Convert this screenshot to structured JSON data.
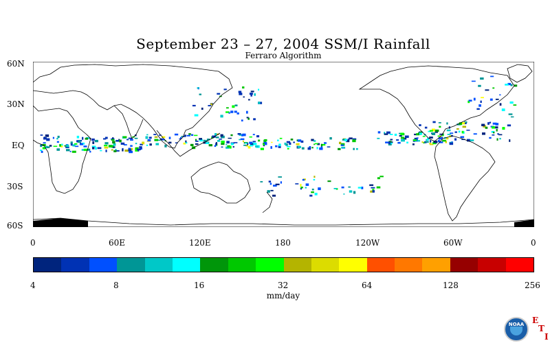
{
  "title": "September 23 – 27, 2004 SSM/I Rainfall",
  "subtitle": "Ferraro Algorithm",
  "lat_labels": [
    "60N",
    "30N",
    "EQ",
    "30S",
    "60S"
  ],
  "lon_labels": [
    "0",
    "60E",
    "120E",
    "180",
    "120W",
    "60W",
    "0"
  ],
  "colorbar": {
    "colors": [
      "#00247d",
      "#0032b4",
      "#0050ff",
      "#009696",
      "#00c8c8",
      "#00ffff",
      "#00960a",
      "#00c800",
      "#00ff00",
      "#b4b400",
      "#dcdc00",
      "#ffff00",
      "#ff5000",
      "#ff7800",
      "#ffa000",
      "#960000",
      "#c80000",
      "#ff0000"
    ],
    "tick_labels": [
      "4",
      "8",
      "16",
      "32",
      "64",
      "128",
      "256"
    ],
    "units": "mm/day"
  },
  "logo": {
    "label": "NOAA",
    "letters": [
      "E",
      "T",
      "I"
    ]
  },
  "chart_data": {
    "type": "heatmap",
    "title": "September 23 – 27, 2004 SSM/I Rainfall",
    "subtitle": "Ferraro Algorithm",
    "lon_range": [
      0,
      360
    ],
    "lat_range": [
      -60,
      60
    ],
    "colorbar_ticks": [
      4,
      8,
      16,
      32,
      64,
      128,
      256
    ],
    "units": "mm/day"
  }
}
